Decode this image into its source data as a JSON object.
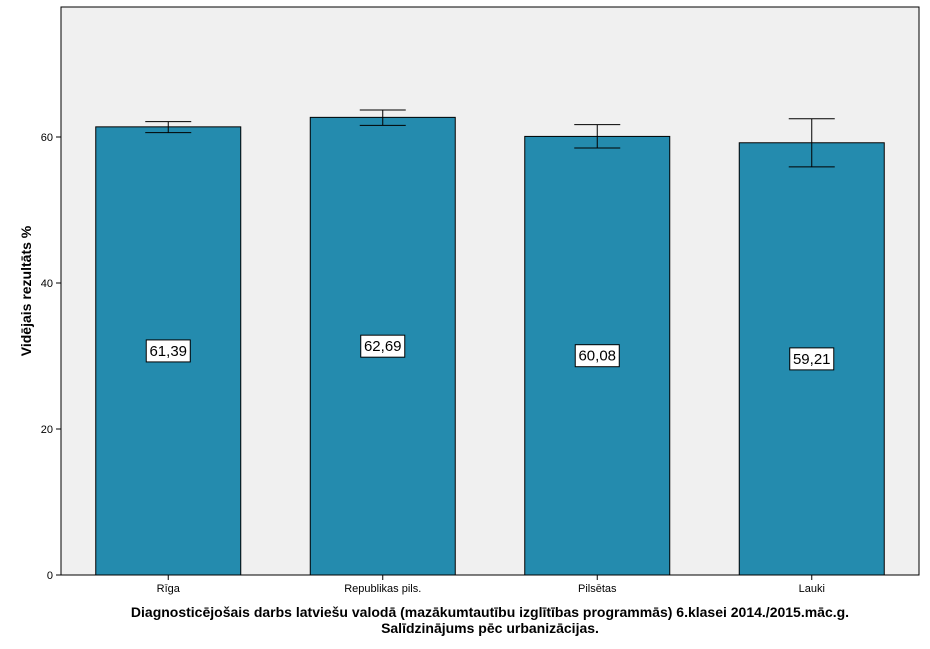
{
  "chart_data": {
    "type": "bar",
    "categories": [
      "Rīga",
      "Republikas pils.",
      "Pilsētas",
      "Lauki"
    ],
    "values": [
      61.39,
      62.69,
      60.08,
      59.21
    ],
    "data_labels": [
      "61,39",
      "62,69",
      "60,08",
      "59,21"
    ],
    "error_bars": [
      {
        "low": 60.6,
        "high": 62.1
      },
      {
        "low": 61.6,
        "high": 63.7
      },
      {
        "low": 58.5,
        "high": 61.7
      },
      {
        "low": 55.9,
        "high": 62.5
      }
    ],
    "title": "",
    "xlabel": "Diagnosticējošais darbs latviešu valodā (mazākumtautību izglītības programmās) 6.klasei 2014./2015.māc.g.",
    "xlabel_line2": "Salīdzinājums pēc urbanizācijas.",
    "ylabel": "Vidējais rezultāts %",
    "ylim": [
      0,
      78
    ],
    "yticks": [
      0,
      20,
      40,
      60
    ],
    "ytick_labels": [
      "0",
      "20",
      "40",
      "60"
    ],
    "grid": false,
    "colors": {
      "bar": "#248BAE",
      "plot_background": "#F0F0F0",
      "error_bar": "#000000"
    }
  }
}
